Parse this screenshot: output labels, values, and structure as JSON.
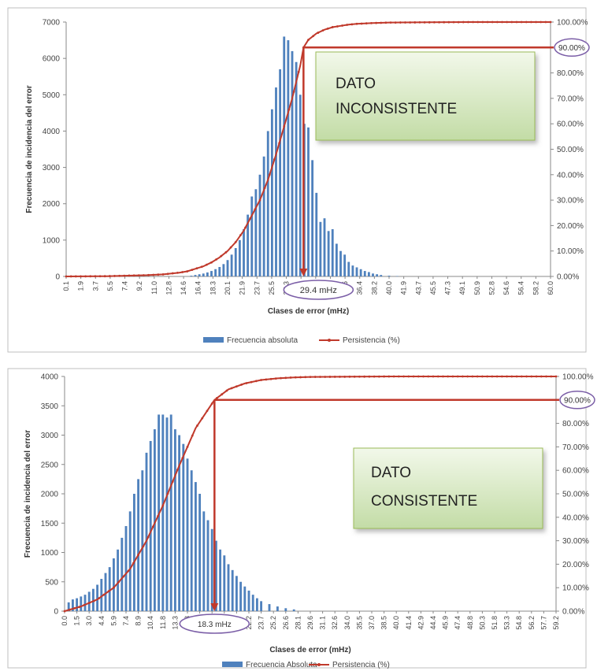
{
  "chart_data": [
    {
      "type": "bar",
      "xlabel": "Clases de error (mHz)",
      "ylabel": "Frecuencia de incidencia del error",
      "ylim": [
        0,
        7000
      ],
      "yticks": [
        "0",
        "1000",
        "2000",
        "3000",
        "4000",
        "5000",
        "6000",
        "7000"
      ],
      "y2lim": [
        0,
        100
      ],
      "y2ticks": [
        "0.00%",
        "10.00%",
        "20.00%",
        "30.00%",
        "40.00%",
        "50.00%",
        "60.00%",
        "70.00%",
        "80.00%",
        "90.00%",
        "100.00%"
      ],
      "xlim": [
        0,
        60
      ],
      "xticks": [
        "0.1",
        "1.9",
        "3.7",
        "5.5",
        "7.4",
        "9.2",
        "11.0",
        "12.8",
        "14.6",
        "16.4",
        "18.3",
        "20.1",
        "21.9",
        "23.7",
        "25.5",
        "27.3",
        "29.1",
        "30.9",
        "32.8",
        "34.6",
        "36.4",
        "38.2",
        "40.0",
        "41.9",
        "43.7",
        "45.5",
        "47.3",
        "49.1",
        "50.9",
        "52.8",
        "54.6",
        "56.4",
        "58.2",
        "60.0"
      ],
      "bars": {
        "x": [
          15.5,
          16.0,
          16.5,
          17.0,
          17.5,
          18.0,
          18.5,
          19.0,
          19.5,
          20.0,
          20.5,
          21.0,
          21.5,
          22.0,
          22.5,
          23.0,
          23.5,
          24.0,
          24.5,
          25.0,
          25.5,
          26.0,
          26.5,
          27.0,
          27.5,
          28.0,
          28.5,
          29.0,
          29.5,
          30.0,
          30.5,
          31.0,
          31.5,
          32.0,
          32.5,
          33.0,
          33.5,
          34.0,
          34.5,
          35.0,
          35.5,
          36.0,
          36.5,
          37.0,
          37.5,
          38.0,
          38.5,
          39.0,
          40.0,
          41.0
        ],
        "values": [
          20,
          40,
          60,
          80,
          110,
          150,
          200,
          260,
          340,
          450,
          600,
          780,
          1000,
          1300,
          1700,
          2200,
          2400,
          2800,
          3300,
          4000,
          4600,
          5200,
          5700,
          6600,
          6500,
          6200,
          5900,
          5000,
          4200,
          4100,
          3200,
          2300,
          1500,
          1600,
          1250,
          1300,
          900,
          700,
          600,
          400,
          300,
          250,
          200,
          150,
          120,
          80,
          60,
          40,
          20,
          10
        ]
      },
      "series": [
        {
          "name": "Persistencia (%)",
          "x": [
            0,
            5,
            10,
            12,
            14,
            15,
            16,
            17,
            18,
            19,
            20,
            21,
            22,
            23,
            24,
            25,
            26,
            27,
            28,
            29,
            29.4,
            30,
            31,
            32,
            33,
            34,
            35,
            36,
            38,
            40,
            45,
            50,
            55,
            60
          ],
          "values": [
            0,
            0.1,
            0.5,
            0.8,
            1.5,
            2.0,
            3.0,
            4.0,
            5.5,
            7.5,
            10,
            13.5,
            18,
            24,
            30,
            38,
            48,
            59,
            70,
            83,
            90,
            93,
            95.5,
            97,
            98,
            98.5,
            99,
            99.3,
            99.6,
            99.8,
            99.9,
            100,
            100,
            100
          ]
        }
      ],
      "legend": [
        "Frecuencia absoluta",
        "Persistencia (%)"
      ],
      "legend_position": "bottom",
      "marker_value": "29.4 mHz",
      "marker_x": 29.4,
      "threshold_label": "90.00%",
      "threshold_value": 90,
      "annotation": [
        "DATO",
        "INCONSISTENTE"
      ]
    },
    {
      "type": "bar",
      "xlabel": "Clases de error (mHz)",
      "ylabel": "Frecuencia de incidencia del error",
      "ylim": [
        0,
        4000
      ],
      "yticks": [
        "0",
        "500",
        "1000",
        "1500",
        "2000",
        "2500",
        "3000",
        "3500",
        "4000"
      ],
      "y2lim": [
        0,
        100
      ],
      "y2ticks": [
        "0.00%",
        "10.00%",
        "20.00%",
        "30.00%",
        "40.00%",
        "50.00%",
        "60.00%",
        "70.00%",
        "80.00%",
        "90.00%",
        "100.00%"
      ],
      "xlim": [
        0,
        60
      ],
      "xticks": [
        "0.0",
        "1.5",
        "3.0",
        "4.4",
        "5.9",
        "7.4",
        "8.9",
        "10.4",
        "11.8",
        "13.3",
        "14.8",
        "16.3",
        "17.8",
        "19.2",
        "20.7",
        "22.2",
        "23.7",
        "25.2",
        "26.6",
        "28.1",
        "29.6",
        "31.1",
        "32.6",
        "34.0",
        "35.5",
        "37.0",
        "38.5",
        "40.0",
        "41.4",
        "42.9",
        "44.4",
        "45.9",
        "47.4",
        "48.8",
        "50.3",
        "51.8",
        "53.3",
        "54.8",
        "56.2",
        "57.7",
        "59.2"
      ],
      "bars": {
        "x": [
          0.5,
          1.0,
          1.5,
          2.0,
          2.5,
          3.0,
          3.5,
          4.0,
          4.5,
          5.0,
          5.5,
          6.0,
          6.5,
          7.0,
          7.5,
          8.0,
          8.5,
          9.0,
          9.5,
          10.0,
          10.5,
          11.0,
          11.5,
          12.0,
          12.5,
          13.0,
          13.5,
          14.0,
          14.5,
          15.0,
          15.5,
          16.0,
          16.5,
          17.0,
          17.5,
          18.0,
          18.5,
          19.0,
          19.5,
          20.0,
          20.5,
          21.0,
          21.5,
          22.0,
          22.5,
          23.0,
          23.5,
          24.0,
          25.0,
          26.0,
          27.0,
          28.0
        ],
        "values": [
          150,
          200,
          220,
          250,
          280,
          330,
          380,
          450,
          550,
          650,
          750,
          900,
          1050,
          1250,
          1450,
          1700,
          2000,
          2250,
          2400,
          2700,
          2900,
          3100,
          3350,
          3350,
          3300,
          3350,
          3100,
          3000,
          2850,
          2600,
          2400,
          2200,
          2000,
          1700,
          1550,
          1400,
          1200,
          1050,
          950,
          800,
          700,
          600,
          500,
          420,
          350,
          280,
          220,
          170,
          120,
          80,
          50,
          30
        ]
      },
      "series": [
        {
          "name": "Persistencia (%)",
          "x": [
            0,
            2,
            4,
            6,
            8,
            10,
            12,
            14,
            16,
            18.3,
            20,
            22,
            24,
            26,
            28,
            30,
            35,
            40,
            45,
            50,
            55,
            60
          ],
          "values": [
            0,
            2,
            5,
            10,
            18,
            30,
            45,
            62,
            78,
            90,
            94.5,
            97,
            98.5,
            99.2,
            99.6,
            99.8,
            99.9,
            100,
            100,
            100,
            100,
            100
          ]
        }
      ],
      "legend": [
        "Frecuencia Absoluta",
        "Persistencia (%)"
      ],
      "legend_position": "bottom",
      "marker_value": "18.3 mHz",
      "marker_x": 18.3,
      "threshold_label": "90.00%",
      "threshold_value": 90,
      "annotation": [
        "DATO",
        "CONSISTENTE"
      ]
    }
  ],
  "colors": {
    "bar": "#4f81bd",
    "line": "#c0392b",
    "ellipse": "#7b5ea7",
    "box_top": "#f2f8ea",
    "box_bottom": "#c3dca6",
    "box_border": "#9bbb59"
  }
}
